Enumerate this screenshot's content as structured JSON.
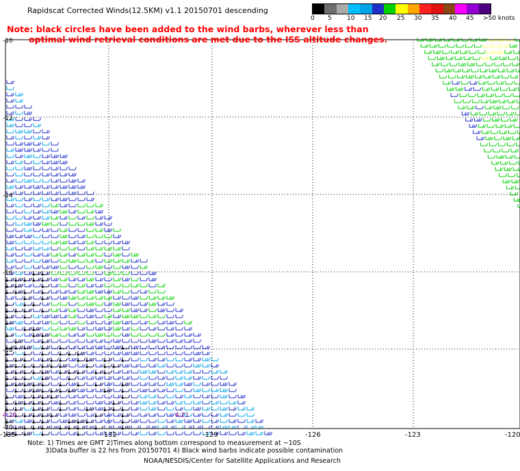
{
  "header": {
    "title": "Rapidscat Corrected Winds(12.5KM) v1.1 20150701 descending",
    "note_line_1": "Note: black circles have been added to the wind barbs, wherever less than",
    "note_line_2": "optimal wind retrieval conditions are met due to the ISS altitude changes."
  },
  "legend": {
    "labels": [
      "0",
      "5",
      "10",
      "15",
      "20",
      "25",
      "30",
      "35",
      "40",
      "45",
      ">50 knots"
    ],
    "colors": [
      "#000000",
      "#6e6e6e",
      "#aaaaaa",
      "#00bfff",
      "#00a2e8",
      "#1e2ec8",
      "#00d000",
      "#ffff00",
      "#ffa500",
      "#ff2020",
      "#e01010",
      "#8b4513",
      "#ff00ff",
      "#9400d3",
      "#4b0082"
    ]
  },
  "map": {
    "lon_labels": [
      "-135",
      "-132",
      "-129",
      "-126",
      "-123",
      "-120"
    ],
    "lat_labels": [
      "-10",
      "-12",
      "-14",
      "-16",
      "-18",
      "-20"
    ],
    "time_labels": [
      "4:20",
      "4:21"
    ]
  },
  "footer": {
    "line_1": "Note: 1) Times are GMT 2)Times along bottom correspond to measurement at ~10S",
    "line_2": "3)Data buffer is 22 hrs from 20150701 4) Black wind barbs indicate possible contamination",
    "line_3": "NOAA/NESDIS/Center for Satellite Applications and Research"
  }
}
